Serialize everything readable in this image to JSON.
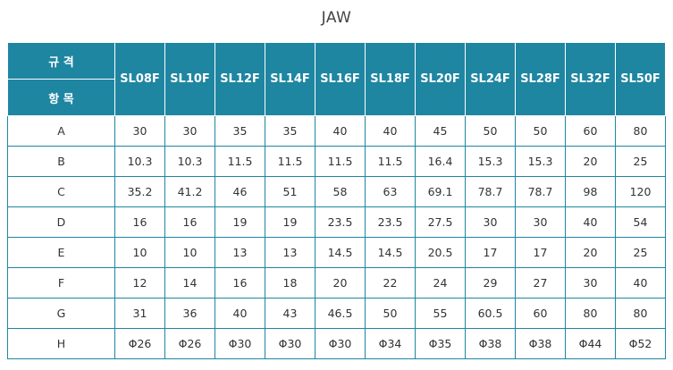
{
  "title": "JAW",
  "header": {
    "spec_label": "규 격",
    "item_label": "항 목",
    "models": [
      "SL08F",
      "SL10F",
      "SL12F",
      "SL14F",
      "SL16F",
      "SL18F",
      "SL20F",
      "SL24F",
      "SL28F",
      "SL32F",
      "SL50F"
    ]
  },
  "rows": [
    {
      "item": "A",
      "values": [
        "30",
        "30",
        "35",
        "35",
        "40",
        "40",
        "45",
        "50",
        "50",
        "60",
        "80"
      ]
    },
    {
      "item": "B",
      "values": [
        "10.3",
        "10.3",
        "11.5",
        "11.5",
        "11.5",
        "11.5",
        "16.4",
        "15.3",
        "15.3",
        "20",
        "25"
      ]
    },
    {
      "item": "C",
      "values": [
        "35.2",
        "41.2",
        "46",
        "51",
        "58",
        "63",
        "69.1",
        "78.7",
        "78.7",
        "98",
        "120"
      ]
    },
    {
      "item": "D",
      "values": [
        "16",
        "16",
        "19",
        "19",
        "23.5",
        "23.5",
        "27.5",
        "30",
        "30",
        "40",
        "54"
      ]
    },
    {
      "item": "E",
      "values": [
        "10",
        "10",
        "13",
        "13",
        "14.5",
        "14.5",
        "20.5",
        "17",
        "17",
        "20",
        "25"
      ]
    },
    {
      "item": "F",
      "values": [
        "12",
        "14",
        "16",
        "18",
        "20",
        "22",
        "24",
        "29",
        "27",
        "30",
        "40"
      ]
    },
    {
      "item": "G",
      "values": [
        "31",
        "36",
        "40",
        "43",
        "46.5",
        "50",
        "55",
        "60.5",
        "60",
        "80",
        "80"
      ]
    },
    {
      "item": "H",
      "values": [
        "Φ26",
        "Φ26",
        "Φ30",
        "Φ30",
        "Φ30",
        "Φ34",
        "Φ35",
        "Φ38",
        "Φ38",
        "Φ44",
        "Φ52"
      ]
    }
  ]
}
